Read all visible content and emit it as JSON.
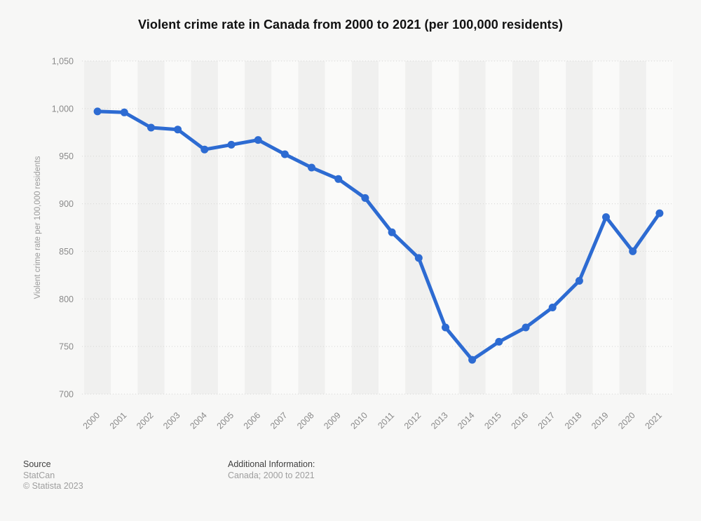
{
  "title": "Violent crime rate in Canada from 2000 to 2021 (per 100,000 residents)",
  "chart_data": {
    "type": "line",
    "x": [
      "2000",
      "2001",
      "2002",
      "2003",
      "2004",
      "2005",
      "2006",
      "2007",
      "2008",
      "2009",
      "2010",
      "2011",
      "2012",
      "2013",
      "2014",
      "2015",
      "2016",
      "2017",
      "2018",
      "2019",
      "2020",
      "2021"
    ],
    "series": [
      {
        "name": "Violent crime rate per 100,000 residents",
        "values": [
          997,
          996,
          980,
          978,
          957,
          962,
          967,
          952,
          938,
          926,
          906,
          870,
          843,
          770,
          736,
          755,
          770,
          791,
          819,
          886,
          850,
          890
        ]
      }
    ],
    "title": "Violent crime rate in Canada from 2000 to 2021 (per 100,000 residents)",
    "xlabel": "",
    "ylabel": "Violent crime rate per 100,000 residents",
    "ylim": [
      700,
      1050
    ],
    "yticks": [
      1050,
      1000,
      950,
      900,
      850,
      800,
      750,
      700
    ],
    "ytick_labels": [
      "1,050",
      "1,000",
      "950",
      "900",
      "850",
      "800",
      "750",
      "700"
    ],
    "grid": "horizontal-dotted",
    "legend": "none",
    "line_color": "#2d6bd2",
    "marker": "circle"
  },
  "footer": {
    "source_label": "Source",
    "source_value": "StatCan",
    "copyright": "© Statista 2023",
    "additional_info_label": "Additional Information:",
    "additional_info_value": "Canada; 2000 to 2021"
  },
  "style": {
    "background": "#f7f7f6",
    "band_dark": "#f0f0ef",
    "band_light": "#fafaf9",
    "gridline_color": "#d6d6d4",
    "tick_color": "#8a8a8a",
    "axis_title_color": "#9a9a9a",
    "title_color": "#111111"
  }
}
